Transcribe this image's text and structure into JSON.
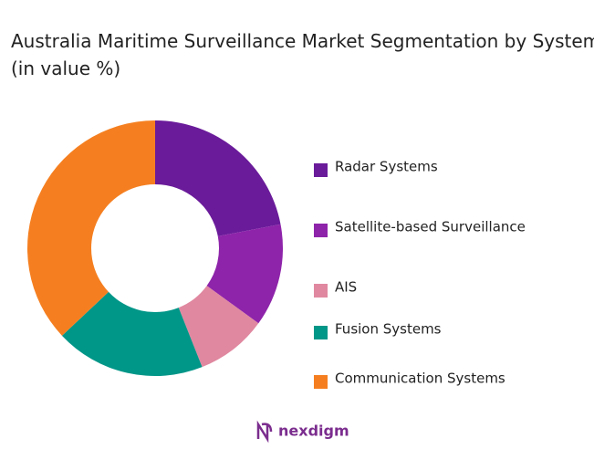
{
  "chart_data": {
    "type": "pie",
    "title": "Australia Maritime Surveillance Market Segmentation by System Type (in value %)",
    "categories": [
      "Radar Systems",
      "Satellite-based Surveillance",
      "AIS",
      "Fusion Systems",
      "Communication Systems"
    ],
    "values": [
      22,
      13,
      9,
      19,
      37
    ],
    "colors": [
      "#6a1b9a",
      "#8e24aa",
      "#e088a0",
      "#009688",
      "#f57f20"
    ]
  },
  "footer": {
    "brand": "nexdigm"
  }
}
